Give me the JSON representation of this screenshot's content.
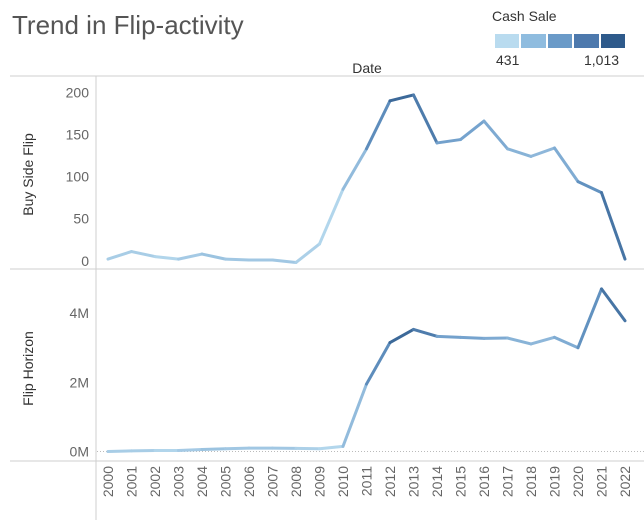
{
  "title": "Trend in Flip-activity",
  "legend": {
    "title": "Cash Sale",
    "min_label": "431",
    "max_label": "1,013",
    "colors": [
      "#b9dbef",
      "#8fbcdf",
      "#6a9ac8",
      "#4d79ad",
      "#2e5a8b"
    ]
  },
  "chart_data": {
    "type": "line",
    "column_header": "Date",
    "categories": [
      "2000",
      "2001",
      "2002",
      "2003",
      "2004",
      "2005",
      "2006",
      "2007",
      "2008",
      "2009",
      "2010",
      "2011",
      "2012",
      "2013",
      "2014",
      "2015",
      "2016",
      "2017",
      "2018",
      "2019",
      "2020",
      "2021",
      "2022"
    ],
    "panels": [
      {
        "ylabel": "Buy Side Flip",
        "yticks": [
          "200",
          "150",
          "100",
          "50",
          "0"
        ],
        "ytick_values": [
          200,
          150,
          100,
          50,
          0
        ],
        "ylim": [
          -5,
          210
        ],
        "values": [
          2,
          11,
          5,
          2,
          8,
          2,
          1,
          1,
          -2,
          20,
          85,
          133,
          190,
          197,
          140,
          144,
          166,
          133,
          124,
          134,
          94,
          81,
          2
        ]
      },
      {
        "ylabel": "Flip Horizon",
        "yticks": [
          "4M",
          "2M",
          "0M"
        ],
        "ytick_values": [
          4000000,
          2000000,
          0
        ],
        "ylim": [
          -100000,
          4900000
        ],
        "values": [
          0,
          20000,
          30000,
          30000,
          60000,
          80000,
          100000,
          100000,
          90000,
          80000,
          150000,
          1950000,
          3150000,
          3530000,
          3330000,
          3300000,
          3270000,
          3280000,
          3110000,
          3300000,
          3000000,
          4700000,
          3780000
        ]
      }
    ],
    "cash_sale": [
      470,
      520,
      470,
      450,
      560,
      520,
      520,
      520,
      520,
      440,
      470,
      680,
      880,
      1013,
      700,
      680,
      680,
      620,
      600,
      580,
      700,
      820,
      960
    ],
    "color_range": [
      431,
      1013
    ]
  }
}
